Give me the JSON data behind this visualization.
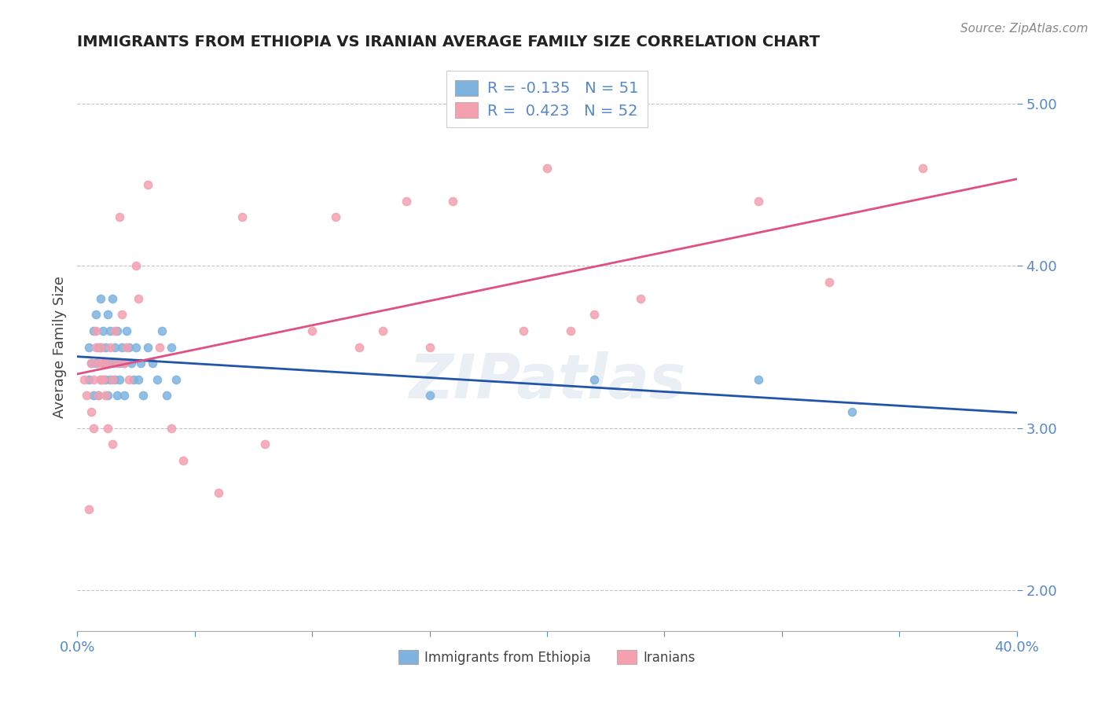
{
  "title": "IMMIGRANTS FROM ETHIOPIA VS IRANIAN AVERAGE FAMILY SIZE CORRELATION CHART",
  "source_text": "Source: ZipAtlas.com",
  "ylabel": "Average Family Size",
  "xlabel": "",
  "xlim": [
    0.0,
    0.4
  ],
  "ylim": [
    1.75,
    5.25
  ],
  "yticks": [
    2.0,
    3.0,
    4.0,
    5.0
  ],
  "xticks": [
    0.0,
    0.05,
    0.1,
    0.15,
    0.2,
    0.25,
    0.3,
    0.35,
    0.4
  ],
  "xtick_labels": [
    "0.0%",
    "",
    "",
    "",
    "",
    "",
    "",
    "",
    "40.0%"
  ],
  "background_color": "#ffffff",
  "plot_bg_color": "#ffffff",
  "watermark": "ZIPatlas",
  "legend_R_ethiopia": "-0.135",
  "legend_N_ethiopia": "51",
  "legend_R_iranians": "0.423",
  "legend_N_iranians": "52",
  "ethiopia_color": "#7eb3e0",
  "iranians_color": "#f4a0b0",
  "ethiopia_line_color": "#2255aa",
  "iranians_line_color": "#e05080",
  "title_color": "#222222",
  "axis_color": "#5588cc",
  "ethiopia_scatter": [
    [
      0.005,
      3.5
    ],
    [
      0.005,
      3.3
    ],
    [
      0.006,
      3.4
    ],
    [
      0.007,
      3.6
    ],
    [
      0.007,
      3.2
    ],
    [
      0.008,
      3.7
    ],
    [
      0.008,
      3.4
    ],
    [
      0.009,
      3.5
    ],
    [
      0.009,
      3.2
    ],
    [
      0.01,
      3.8
    ],
    [
      0.01,
      3.3
    ],
    [
      0.01,
      3.5
    ],
    [
      0.011,
      3.6
    ],
    [
      0.011,
      3.4
    ],
    [
      0.012,
      3.3
    ],
    [
      0.012,
      3.5
    ],
    [
      0.013,
      3.2
    ],
    [
      0.013,
      3.7
    ],
    [
      0.013,
      3.4
    ],
    [
      0.014,
      3.6
    ],
    [
      0.014,
      3.3
    ],
    [
      0.015,
      3.8
    ],
    [
      0.015,
      3.4
    ],
    [
      0.016,
      3.5
    ],
    [
      0.016,
      3.3
    ],
    [
      0.017,
      3.2
    ],
    [
      0.017,
      3.6
    ],
    [
      0.018,
      3.4
    ],
    [
      0.018,
      3.3
    ],
    [
      0.019,
      3.5
    ],
    [
      0.02,
      3.4
    ],
    [
      0.02,
      3.2
    ],
    [
      0.021,
      3.6
    ],
    [
      0.022,
      3.5
    ],
    [
      0.023,
      3.4
    ],
    [
      0.024,
      3.3
    ],
    [
      0.025,
      3.5
    ],
    [
      0.026,
      3.3
    ],
    [
      0.027,
      3.4
    ],
    [
      0.028,
      3.2
    ],
    [
      0.03,
      3.5
    ],
    [
      0.032,
      3.4
    ],
    [
      0.034,
      3.3
    ],
    [
      0.036,
      3.6
    ],
    [
      0.038,
      3.2
    ],
    [
      0.04,
      3.5
    ],
    [
      0.042,
      3.3
    ],
    [
      0.15,
      3.2
    ],
    [
      0.22,
      3.3
    ],
    [
      0.29,
      3.3
    ],
    [
      0.33,
      3.1
    ]
  ],
  "iranians_scatter": [
    [
      0.003,
      3.3
    ],
    [
      0.004,
      3.2
    ],
    [
      0.005,
      2.5
    ],
    [
      0.006,
      3.1
    ],
    [
      0.006,
      3.4
    ],
    [
      0.007,
      3.0
    ],
    [
      0.007,
      3.3
    ],
    [
      0.008,
      3.5
    ],
    [
      0.008,
      3.6
    ],
    [
      0.009,
      3.4
    ],
    [
      0.009,
      3.2
    ],
    [
      0.01,
      3.3
    ],
    [
      0.01,
      3.5
    ],
    [
      0.011,
      3.4
    ],
    [
      0.011,
      3.3
    ],
    [
      0.012,
      3.2
    ],
    [
      0.013,
      3.0
    ],
    [
      0.013,
      3.4
    ],
    [
      0.014,
      3.5
    ],
    [
      0.015,
      3.3
    ],
    [
      0.015,
      2.9
    ],
    [
      0.016,
      3.6
    ],
    [
      0.017,
      3.4
    ],
    [
      0.018,
      4.3
    ],
    [
      0.019,
      3.7
    ],
    [
      0.02,
      3.4
    ],
    [
      0.021,
      3.5
    ],
    [
      0.022,
      3.3
    ],
    [
      0.025,
      4.0
    ],
    [
      0.026,
      3.8
    ],
    [
      0.03,
      4.5
    ],
    [
      0.035,
      3.5
    ],
    [
      0.04,
      3.0
    ],
    [
      0.045,
      2.8
    ],
    [
      0.06,
      2.6
    ],
    [
      0.07,
      4.3
    ],
    [
      0.08,
      2.9
    ],
    [
      0.1,
      3.6
    ],
    [
      0.11,
      4.3
    ],
    [
      0.12,
      3.5
    ],
    [
      0.13,
      3.6
    ],
    [
      0.14,
      4.4
    ],
    [
      0.15,
      3.5
    ],
    [
      0.16,
      4.4
    ],
    [
      0.19,
      3.6
    ],
    [
      0.2,
      4.6
    ],
    [
      0.21,
      3.6
    ],
    [
      0.22,
      3.7
    ],
    [
      0.24,
      3.8
    ],
    [
      0.29,
      4.4
    ],
    [
      0.32,
      3.9
    ],
    [
      0.36,
      4.6
    ]
  ]
}
